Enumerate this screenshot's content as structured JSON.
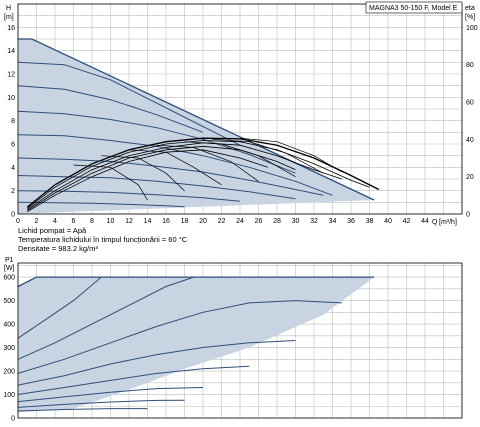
{
  "chart_data": [
    {
      "type": "line",
      "id": "head",
      "model": "MAGNA3 50-150 F, Model E",
      "ylabel_left": "H",
      "ylabel_left_unit": "[m]",
      "ylabel_right": "eta",
      "ylabel_right_unit": "[%]",
      "xlabel": "Q",
      "xlabel_unit": "[m³/h]",
      "xlim": [
        0,
        48
      ],
      "xticks": [
        0,
        2,
        4,
        6,
        8,
        10,
        12,
        14,
        16,
        18,
        20,
        22,
        24,
        26,
        28,
        30,
        32,
        34,
        36,
        38,
        40,
        42,
        44
      ],
      "ylim": [
        0,
        18
      ],
      "yticks": [
        0,
        2,
        4,
        6,
        8,
        10,
        12,
        14,
        16
      ],
      "eta_ticks": [
        0,
        20,
        40,
        60,
        80,
        100
      ],
      "eta_max_h": 16,
      "grid": true,
      "envelope": [
        [
          0,
          15
        ],
        [
          1.5,
          15
        ],
        [
          38.5,
          1.2
        ],
        [
          38.5,
          1.2
        ],
        [
          0,
          0
        ]
      ],
      "series": [
        {
          "values": [
            [
              0,
              15
            ],
            [
              1.5,
              15
            ],
            [
              38.5,
              1.2
            ]
          ]
        },
        {
          "values": [
            [
              0,
              13
            ],
            [
              5,
              12.8
            ],
            [
              10,
              11.5
            ],
            [
              15,
              9.5
            ],
            [
              20,
              7.5
            ],
            [
              24,
              5.9
            ]
          ]
        },
        {
          "values": [
            [
              0,
              11
            ],
            [
              5,
              10.7
            ],
            [
              10,
              9.8
            ],
            [
              15,
              8.5
            ],
            [
              20,
              7
            ]
          ]
        },
        {
          "values": [
            [
              0,
              8.8
            ],
            [
              5,
              8.6
            ],
            [
              10,
              8.1
            ],
            [
              15,
              7.4
            ],
            [
              20,
              6.4
            ],
            [
              25,
              5.1
            ],
            [
              30,
              3.5
            ]
          ]
        },
        {
          "values": [
            [
              0,
              6.8
            ],
            [
              5,
              6.7
            ],
            [
              10,
              6.3
            ],
            [
              15,
              5.8
            ],
            [
              20,
              5
            ],
            [
              25,
              4
            ],
            [
              30,
              2.8
            ],
            [
              34,
              1.6
            ]
          ]
        },
        {
          "values": [
            [
              0,
              4.8
            ],
            [
              5,
              4.7
            ],
            [
              10,
              4.5
            ],
            [
              15,
              4.1
            ],
            [
              20,
              3.6
            ],
            [
              25,
              2.9
            ],
            [
              30,
              2.1
            ],
            [
              33,
              1.6
            ]
          ]
        },
        {
          "values": [
            [
              0,
              3.3
            ],
            [
              5,
              3.2
            ],
            [
              10,
              3.1
            ],
            [
              15,
              2.8
            ],
            [
              20,
              2.4
            ],
            [
              25,
              1.9
            ],
            [
              30,
              1.3
            ]
          ]
        },
        {
          "values": [
            [
              0,
              2
            ],
            [
              5,
              1.95
            ],
            [
              10,
              1.85
            ],
            [
              15,
              1.65
            ],
            [
              20,
              1.4
            ],
            [
              24,
              1.1
            ]
          ]
        },
        {
          "values": [
            [
              0,
              1
            ],
            [
              4,
              0.97
            ],
            [
              8,
              0.92
            ],
            [
              12,
              0.82
            ],
            [
              16,
              0.7
            ],
            [
              18,
              0.62
            ]
          ]
        }
      ],
      "efficiency": [
        {
          "values": [
            [
              1,
              0.6
            ],
            [
              4,
              2.5
            ],
            [
              8,
              4.3
            ],
            [
              12,
              5.5
            ],
            [
              16,
              6.2
            ],
            [
              20,
              6.5
            ],
            [
              24,
              6.45
            ],
            [
              28,
              5.9
            ],
            [
              32,
              4.8
            ],
            [
              36,
              3.3
            ],
            [
              39,
              2.1
            ]
          ]
        },
        {
          "values": [
            [
              1,
              0.5
            ],
            [
              4,
              2.3
            ],
            [
              8,
              4.1
            ],
            [
              12,
              5.3
            ],
            [
              16,
              6.0
            ],
            [
              20,
              6.3
            ],
            [
              24,
              6.2
            ],
            [
              28,
              5.5
            ],
            [
              32,
              4.3
            ],
            [
              36,
              2.9
            ],
            [
              38,
              2.3
            ]
          ]
        },
        {
          "values": [
            [
              1,
              0.4
            ],
            [
              4,
              2.0
            ],
            [
              8,
              3.8
            ],
            [
              12,
              5.0
            ],
            [
              16,
              5.7
            ],
            [
              20,
              6.1
            ],
            [
              24,
              5.9
            ],
            [
              28,
              5.0
            ],
            [
              32,
              3.8
            ],
            [
              35,
              3.0
            ]
          ]
        },
        {
          "values": [
            [
              1,
              0.3
            ],
            [
              4,
              1.8
            ],
            [
              8,
              3.5
            ],
            [
              12,
              4.8
            ],
            [
              16,
              5.5
            ],
            [
              20,
              5.8
            ],
            [
              24,
              5.5
            ],
            [
              28,
              4.5
            ],
            [
              30,
              3.8
            ]
          ]
        },
        {
          "values": [
            [
              1,
              0.2
            ],
            [
              4,
              1.6
            ],
            [
              8,
              3.2
            ],
            [
              12,
              4.5
            ],
            [
              16,
              5.3
            ],
            [
              20,
              5.5
            ],
            [
              24,
              4.8
            ],
            [
              27,
              4.0
            ]
          ]
        }
      ],
      "speed_drops": [
        {
          "values": [
            [
              6,
              4.2
            ],
            [
              10,
              4.0
            ],
            [
              13,
              2.5
            ],
            [
              14,
              1.2
            ]
          ]
        },
        {
          "values": [
            [
              9,
              5.0
            ],
            [
              13,
              4.8
            ],
            [
              16,
              3.5
            ],
            [
              18,
              2.0
            ]
          ]
        },
        {
          "values": [
            [
              12,
              5.5
            ],
            [
              16,
              5.3
            ],
            [
              19,
              4.0
            ],
            [
              22,
              2.5
            ]
          ]
        },
        {
          "values": [
            [
              15,
              5.9
            ],
            [
              19,
              5.7
            ],
            [
              23,
              4.5
            ],
            [
              26,
              2.8
            ]
          ]
        },
        {
          "values": [
            [
              18,
              6.2
            ],
            [
              22,
              6.0
            ],
            [
              26,
              5.0
            ],
            [
              30,
              3.2
            ]
          ]
        },
        {
          "values": [
            [
              21,
              6.4
            ],
            [
              25,
              6.2
            ],
            [
              29,
              5.2
            ],
            [
              33,
              3.5
            ]
          ]
        },
        {
          "values": [
            [
              24,
              6.5
            ],
            [
              28,
              6.2
            ],
            [
              32,
              5.0
            ],
            [
              35,
              3.6
            ]
          ]
        }
      ]
    },
    {
      "type": "line",
      "id": "power",
      "ylabel": "P1",
      "ylabel_unit": "[W]",
      "xlim": [
        0,
        48
      ],
      "ylim": [
        0,
        660
      ],
      "yticks": [
        0,
        100,
        200,
        300,
        400,
        500,
        600
      ],
      "grid": true,
      "envelope": [
        [
          0,
          560
        ],
        [
          2,
          600
        ],
        [
          38.5,
          600
        ],
        [
          33,
          440
        ],
        [
          25,
          300
        ],
        [
          18,
          210
        ],
        [
          12,
          120
        ],
        [
          6,
          40
        ],
        [
          0,
          25
        ]
      ],
      "series": [
        {
          "values": [
            [
              0,
              560
            ],
            [
              2,
              600
            ],
            [
              38.5,
              600
            ]
          ]
        },
        {
          "values": [
            [
              0,
              340
            ],
            [
              3,
              420
            ],
            [
              6,
              500
            ],
            [
              9,
              600
            ]
          ]
        },
        {
          "values": [
            [
              0,
              250
            ],
            [
              4,
              320
            ],
            [
              8,
              400
            ],
            [
              12,
              480
            ],
            [
              16,
              560
            ],
            [
              19,
              600
            ]
          ]
        },
        {
          "values": [
            [
              0,
              190
            ],
            [
              5,
              250
            ],
            [
              10,
              320
            ],
            [
              15,
              390
            ],
            [
              20,
              450
            ],
            [
              25,
              490
            ],
            [
              30,
              500
            ],
            [
              35,
              490
            ]
          ]
        },
        {
          "values": [
            [
              0,
              140
            ],
            [
              5,
              180
            ],
            [
              10,
              230
            ],
            [
              15,
              270
            ],
            [
              20,
              300
            ],
            [
              25,
              320
            ],
            [
              30,
              330
            ]
          ]
        },
        {
          "values": [
            [
              0,
              100
            ],
            [
              5,
              130
            ],
            [
              10,
              160
            ],
            [
              15,
              190
            ],
            [
              20,
              210
            ],
            [
              25,
              220
            ]
          ]
        },
        {
          "values": [
            [
              0,
              70
            ],
            [
              5,
              90
            ],
            [
              10,
              110
            ],
            [
              15,
              125
            ],
            [
              20,
              130
            ]
          ]
        },
        {
          "values": [
            [
              0,
              45
            ],
            [
              5,
              58
            ],
            [
              10,
              68
            ],
            [
              15,
              75
            ],
            [
              18,
              76
            ]
          ]
        },
        {
          "values": [
            [
              0,
              30
            ],
            [
              5,
              36
            ],
            [
              10,
              40
            ],
            [
              14,
              40
            ]
          ]
        }
      ]
    }
  ],
  "info_lines": [
    "Lichid pompat = Apă",
    "Temperatura lichidului în timpul funcționării = 60 °C",
    "Densitate = 983.2  kg/m³"
  ],
  "colors": {
    "fill": "#c8d4e2",
    "curve": "#2e4e7a",
    "curve_eff": "#000000"
  }
}
